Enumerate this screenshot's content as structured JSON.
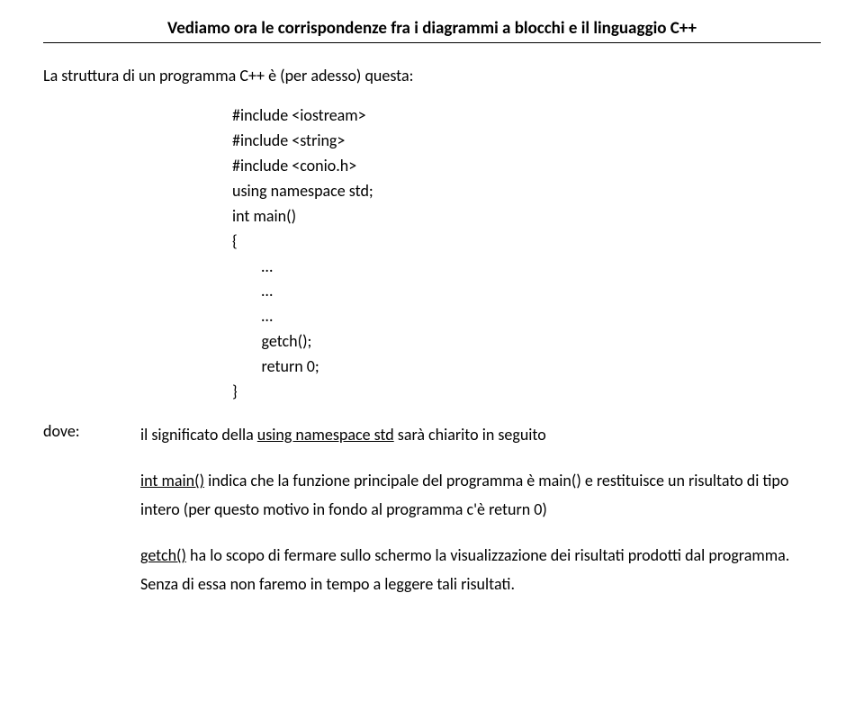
{
  "header": {
    "title": "Vediamo ora le corrispondenze fra i diagrammi a blocchi e il linguaggio C++"
  },
  "intro": "La struttura di un programma C++ è (per adesso) questa:",
  "code": {
    "l1": "#include <iostream>",
    "l2": "#include <string>",
    "l3": "#include <conio.h>",
    "l4": "using namespace std;",
    "l5": "",
    "l6": "int main()",
    "l7": "{",
    "l8": "        …",
    "l9": "        …",
    "l10": "        …",
    "l11": "        getch();",
    "l12": "        return 0;",
    "l13": "}"
  },
  "doveLabel": "dove:",
  "notes": {
    "p1_pre": "il significato della ",
    "p1_u": "using namespace std",
    "p1_post": " sarà chiarito in seguito",
    "p2_u": "int main()",
    "p2_post": " indica che la funzione principale del programma è main() e restituisce un risultato di tipo intero (per questo motivo in fondo al programma c'è return 0)",
    "p3_u": "getch()",
    "p3_post": " ha lo scopo di fermare sullo schermo la visualizzazione dei risultati prodotti dal programma. Senza di essa non faremo in tempo a leggere tali risultati."
  }
}
